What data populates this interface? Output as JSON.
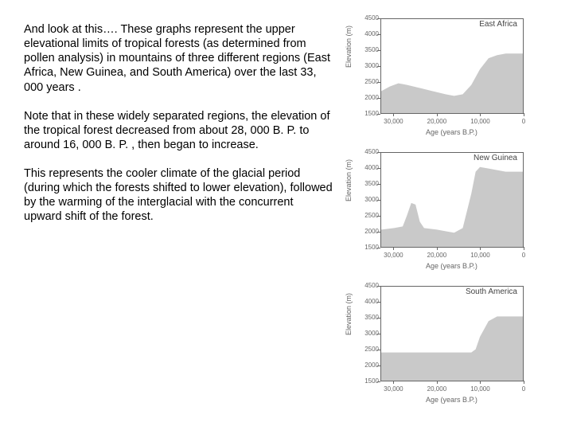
{
  "paragraphs": [
    "And look at this…. These graphs represent the upper elevational limits of tropical forests (as determined from pollen analysis) in mountains of three different regions (East Africa, New Guinea, and South America) over the last 33, 000 years .",
    "Note that in these widely separated regions, the elevation of the tropical forest decreased from about 28, 000 B. P. to around 16, 000 B. P. , then began to increase.",
    "This represents the cooler climate of the glacial period (during which the forests shifted to lower elevation), followed by the warming of the interglacial with the concurrent upward shift of the forest."
  ],
  "ylabel": "Elevation (m)",
  "xlabel": "Age (years B.P.)",
  "yticks": [
    1500,
    2000,
    2500,
    3000,
    3500,
    4000,
    4500
  ],
  "xticks": [
    30000,
    20000,
    10000,
    0
  ],
  "ylim": [
    1500,
    4500
  ],
  "xlim": [
    33000,
    0
  ],
  "fill_color": "#c9c9c9",
  "border_color": "#666666",
  "text_color": "#000000",
  "tick_color": "#666666",
  "title_fontsize": 10,
  "label_fontsize": 9,
  "tick_fontsize": 8,
  "charts": [
    {
      "title": "East Africa",
      "x": [
        33000,
        31000,
        29000,
        27000,
        24000,
        21000,
        18000,
        16000,
        14000,
        12000,
        10000,
        8000,
        6000,
        4000,
        2000,
        0
      ],
      "y": [
        2200,
        2350,
        2450,
        2400,
        2300,
        2200,
        2100,
        2050,
        2100,
        2400,
        2900,
        3250,
        3350,
        3400,
        3400,
        3400
      ]
    },
    {
      "title": "New Guinea",
      "x": [
        33000,
        30000,
        28000,
        27000,
        26000,
        25000,
        24000,
        23000,
        20000,
        18000,
        16000,
        14000,
        12000,
        11000,
        10000,
        8000,
        6000,
        4000,
        2000,
        0
      ],
      "y": [
        2050,
        2100,
        2150,
        2500,
        2900,
        2850,
        2300,
        2100,
        2050,
        2000,
        1950,
        2100,
        3200,
        3900,
        4050,
        4000,
        3950,
        3900,
        3900,
        3900
      ]
    },
    {
      "title": "South America",
      "x": [
        33000,
        30000,
        27000,
        24000,
        21000,
        18000,
        16000,
        15000,
        14000,
        13000,
        12000,
        11000,
        10000,
        8000,
        6000,
        4000,
        2000,
        0
      ],
      "y": [
        2400,
        2400,
        2400,
        2400,
        2400,
        2400,
        2400,
        2400,
        2400,
        2400,
        2400,
        2500,
        2900,
        3400,
        3550,
        3550,
        3550,
        3550
      ]
    }
  ]
}
